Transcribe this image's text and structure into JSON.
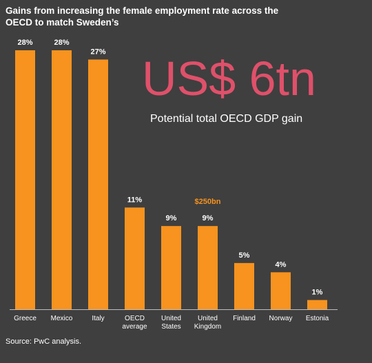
{
  "title": "Gains from increasing the female employment rate across the OECD to match Sweden’s",
  "headline": "US$ 6tn",
  "subheadline": "Potential total OECD GDP gain",
  "source": "Source: PwC analysis.",
  "colors": {
    "background": "#3f3f3f",
    "bar": "#f7931e",
    "headline": "#e0506a",
    "annotation": "#f7931e",
    "axis": "#bfbfbf"
  },
  "chart_data": {
    "type": "bar",
    "title": "Gains from increasing the female employment rate across the OECD to match Sweden’s",
    "xlabel": "",
    "ylabel": "",
    "ylim": [
      0,
      28
    ],
    "grid": false,
    "categories": [
      [
        "Greece"
      ],
      [
        "Mexico"
      ],
      [
        "Italy"
      ],
      [
        "OECD",
        "average"
      ],
      [
        "United",
        "States"
      ],
      [
        "United",
        "Kingdom"
      ],
      [
        "Finland"
      ],
      [
        "Norway"
      ],
      [
        "Estonia"
      ]
    ],
    "values": [
      28,
      28,
      27,
      11,
      9,
      9,
      5,
      4,
      1
    ],
    "value_labels": [
      "28%",
      "28%",
      "27%",
      "11%",
      "9%",
      "9%",
      "5%",
      "4%",
      "1%"
    ],
    "annotations": [
      {
        "category_index": 5,
        "text": "$250bn"
      }
    ]
  }
}
